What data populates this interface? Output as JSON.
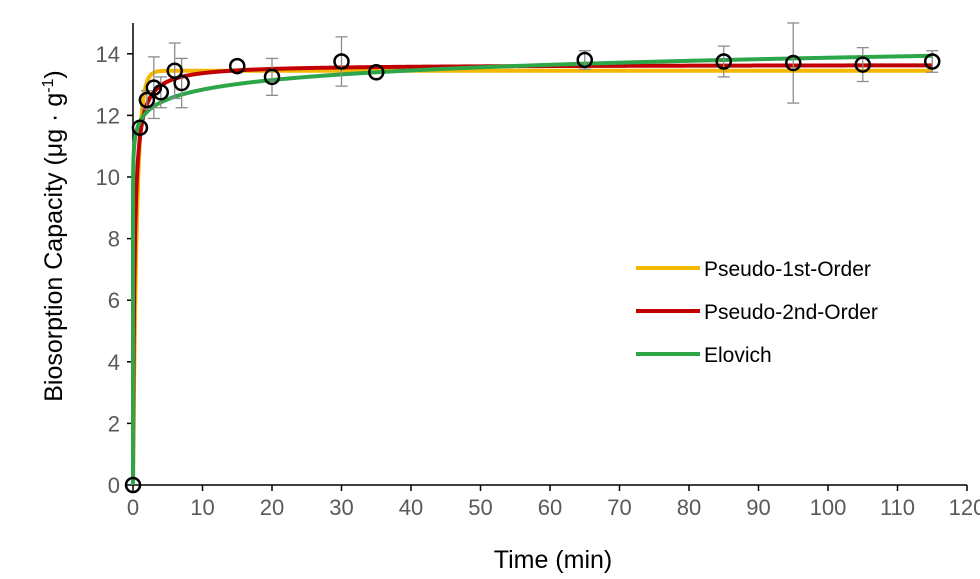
{
  "chart_data": {
    "type": "scatter",
    "title": "",
    "xlabel": "Time (min)",
    "ylabel": "Biosorption Capacity (μg · g",
    "ylabel_superscript": "-1",
    "ylabel_close": ")",
    "xlim": [
      0,
      120
    ],
    "ylim": [
      0,
      15
    ],
    "x_ticks": [
      0,
      10,
      20,
      30,
      40,
      50,
      60,
      70,
      80,
      90,
      100,
      110,
      120
    ],
    "x_tick_labels": [
      "0",
      "10",
      "20",
      "30",
      "40",
      "50",
      "60",
      "70",
      "80",
      "90",
      "100",
      "110",
      "120"
    ],
    "y_ticks": [
      0,
      2,
      4,
      6,
      8,
      10,
      12,
      14
    ],
    "y_tick_labels": [
      "0",
      "2",
      "4",
      "6",
      "8",
      "10",
      "12",
      "14"
    ],
    "grid": false,
    "legend_position": "center-right",
    "experimental": {
      "marker": "open-circle",
      "color": "#000000",
      "errorbar_color": "#8c8c8c",
      "x": [
        0,
        1,
        2,
        3,
        4,
        6,
        7,
        15,
        20,
        30,
        35,
        65,
        85,
        95,
        105,
        115
      ],
      "y": [
        0,
        11.6,
        12.5,
        12.9,
        12.75,
        13.45,
        13.05,
        13.6,
        13.25,
        13.75,
        13.4,
        13.8,
        13.75,
        13.7,
        13.65,
        13.75
      ],
      "err": [
        0,
        0,
        0.3,
        1.0,
        0.5,
        0.9,
        0.8,
        0,
        0.6,
        0.8,
        0,
        0.3,
        0.5,
        1.3,
        0.55,
        0.35
      ]
    },
    "series": [
      {
        "name": "Pseudo-1st-Order",
        "color": "#f5b800",
        "model": "pfo",
        "qe": 13.45,
        "k": 1.8
      },
      {
        "name": "Pseudo-2nd-Order",
        "color": "#c00000",
        "model": "pso",
        "qe": 13.65,
        "k": 0.35
      },
      {
        "name": "Elovich",
        "color": "#2ca649",
        "model": "elovich",
        "a": 11.8,
        "b": 0.45
      }
    ]
  }
}
